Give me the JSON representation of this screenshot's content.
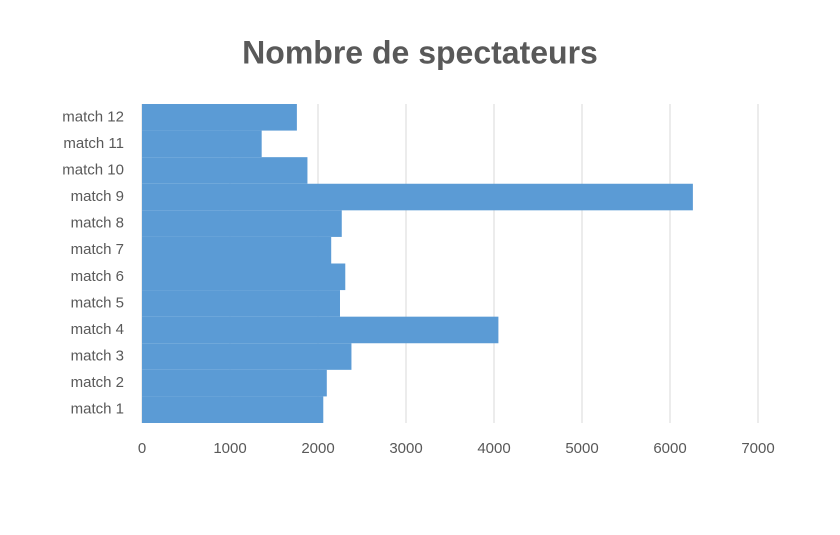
{
  "chart_data": {
    "type": "hbar",
    "title": "Nombre de spectateurs",
    "categories": [
      "match 1",
      "match 2",
      "match 3",
      "match 4",
      "match 5",
      "match 6",
      "match 7",
      "match 8",
      "match 9",
      "match 10",
      "match 11",
      "match 12"
    ],
    "values": [
      2060,
      2100,
      2380,
      4050,
      2250,
      2310,
      2150,
      2270,
      6260,
      1880,
      1360,
      1760
    ],
    "color": "#5b9bd5",
    "xlim": [
      0,
      7000
    ],
    "xticks": [
      0,
      1000,
      2000,
      3000,
      4000,
      5000,
      6000,
      7000
    ],
    "grid": true
  }
}
